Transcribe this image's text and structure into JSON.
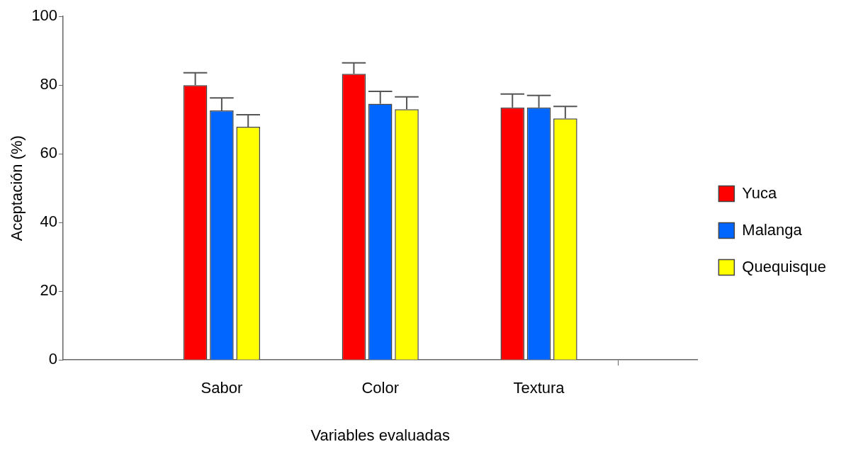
{
  "chart_data": {
    "type": "bar",
    "xlabel": "Variables evaluadas",
    "ylabel": "Aceptación (%)",
    "categories": [
      null,
      "Sabor",
      "Color",
      "Textura",
      null
    ],
    "series": [
      {
        "name": "Yuca",
        "color": "#ff0000",
        "values": [
          null,
          80.0,
          83.3,
          73.5,
          null
        ],
        "errors": [
          null,
          [
            80.0,
            83.6
          ],
          [
            83.3,
            86.5
          ],
          [
            73.5,
            77.4
          ],
          null
        ]
      },
      {
        "name": "Malanga",
        "color": "#0066ff",
        "values": [
          null,
          72.6,
          74.6,
          73.5,
          null
        ],
        "errors": [
          null,
          [
            72.6,
            76.3
          ],
          [
            74.6,
            78.2
          ],
          [
            73.5,
            77.0
          ],
          null
        ]
      },
      {
        "name": "Quequisque",
        "color": "#ffff00",
        "values": [
          null,
          67.9,
          73.0,
          70.3,
          null
        ],
        "errors": [
          null,
          [
            67.9,
            71.4
          ],
          [
            73.0,
            76.6
          ],
          [
            70.3,
            73.8
          ],
          null
        ]
      }
    ],
    "ylim": [
      0,
      100
    ],
    "yticks": [
      0,
      20,
      40,
      60,
      80,
      100
    ],
    "grid": false,
    "legend": "right"
  }
}
